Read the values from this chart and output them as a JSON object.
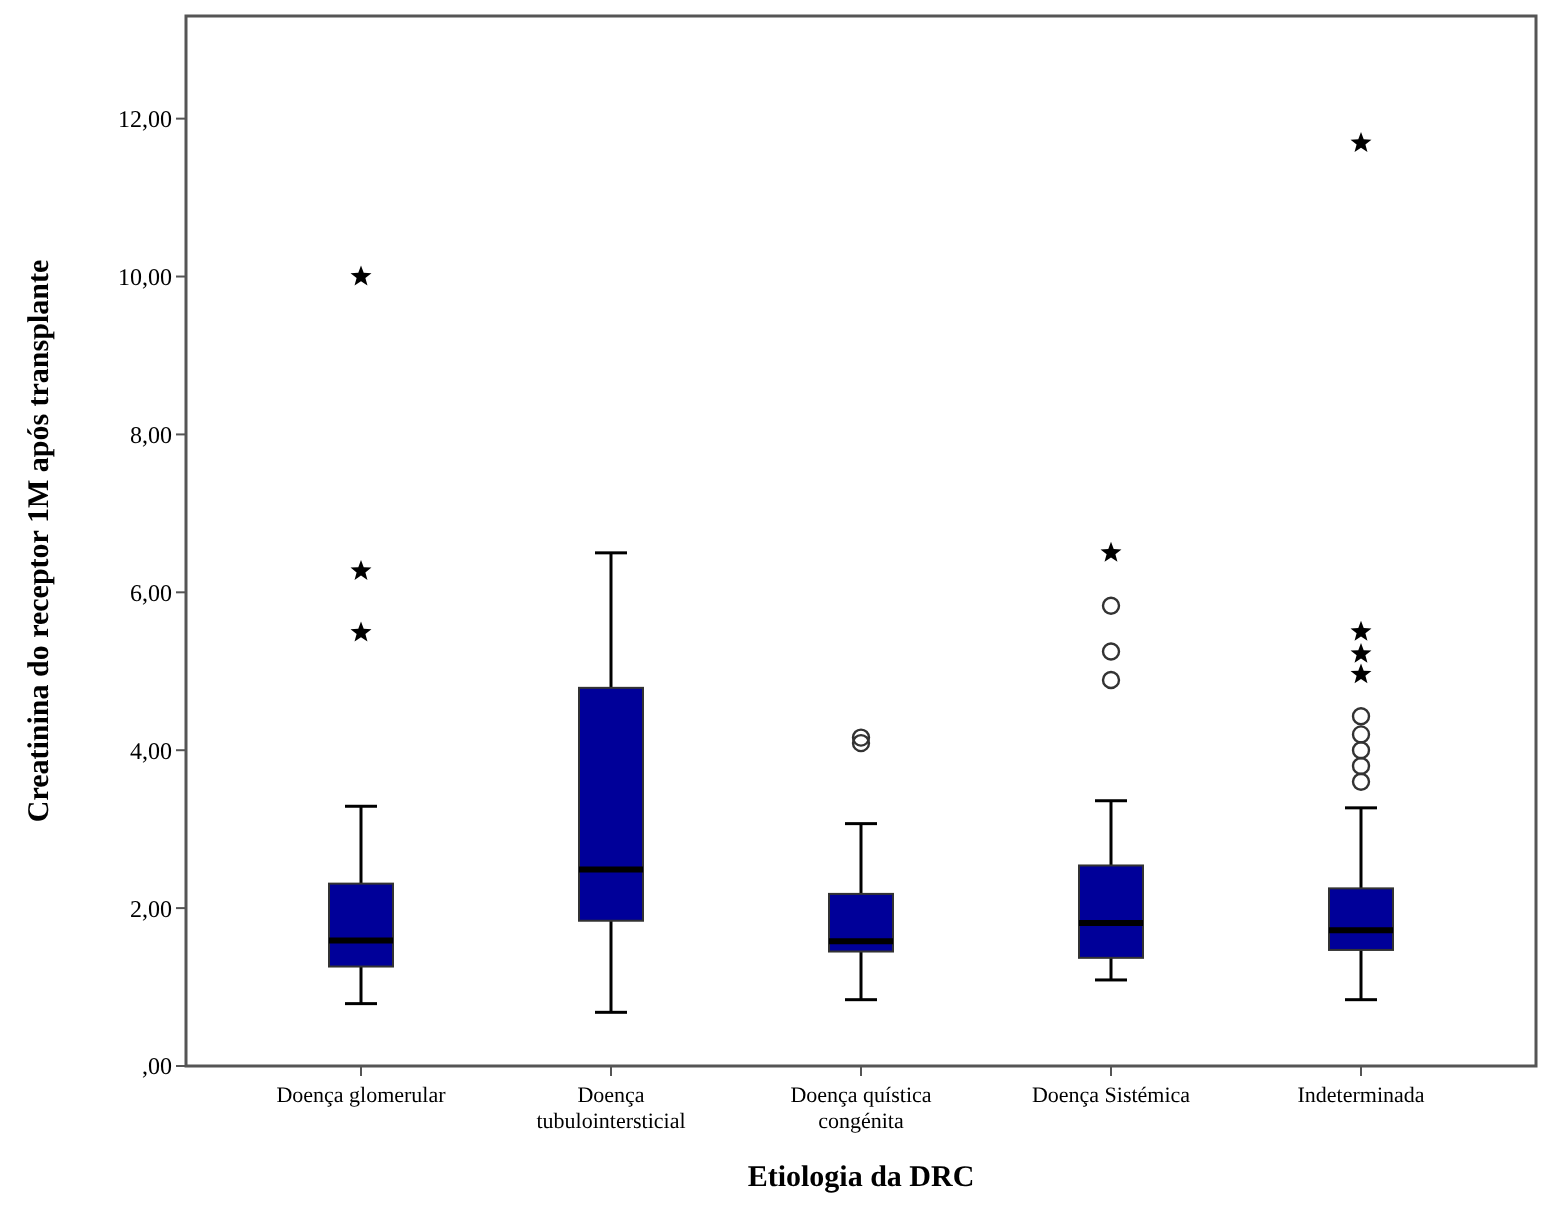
{
  "chart_data": {
    "type": "box",
    "xlabel": "Etiologia da DRC",
    "ylabel": "Creatinina do receptor 1M após transplante",
    "categories": [
      "Doença glomerular",
      "Doença tubulointersticial",
      "Doença quística congénita",
      "Doença Sistémica",
      "Indeterminada"
    ],
    "ylim": [
      0,
      13.3
    ],
    "yticks": [
      {
        "value": 0,
        "label": ",00"
      },
      {
        "value": 2,
        "label": "2,00"
      },
      {
        "value": 4,
        "label": "4,00"
      },
      {
        "value": 6,
        "label": "6,00"
      },
      {
        "value": 8,
        "label": "8,00"
      },
      {
        "value": 10,
        "label": "10,00"
      },
      {
        "value": 12,
        "label": "12,00"
      }
    ],
    "grid": false,
    "series": [
      {
        "color": "#000099",
        "boxes": [
          {
            "low": 0.79,
            "q1": 1.26,
            "median": 1.59,
            "q3": 2.31,
            "high": 3.29
          },
          {
            "low": 0.68,
            "q1": 1.84,
            "median": 2.49,
            "q3": 4.79,
            "high": 6.5
          },
          {
            "low": 0.84,
            "q1": 1.45,
            "median": 1.58,
            "q3": 2.18,
            "high": 3.07,
            "outliers": [
              4.16,
              4.09
            ]
          },
          {
            "low": 1.09,
            "q1": 1.37,
            "median": 1.81,
            "q3": 2.54,
            "high": 3.36,
            "outliers": [
              5.83,
              5.25,
              4.89
            ]
          },
          {
            "low": 0.84,
            "q1": 1.47,
            "median": 1.72,
            "q3": 2.25,
            "high": 3.27,
            "outliers": [
              4.43,
              4.2,
              4.0,
              3.8,
              3.6
            ]
          }
        ]
      },
      {
        "type": "scatter",
        "marker": "star",
        "color": "#000000",
        "x": [
          "Doença glomerular",
          "Doença glomerular",
          "Doença glomerular",
          "Doença Sistémica",
          "Indeterminada",
          "Indeterminada",
          "Indeterminada",
          "Indeterminada"
        ],
        "values": [
          10.0,
          6.27,
          5.49,
          6.5,
          11.69,
          5.5,
          5.22,
          4.96
        ]
      }
    ]
  }
}
